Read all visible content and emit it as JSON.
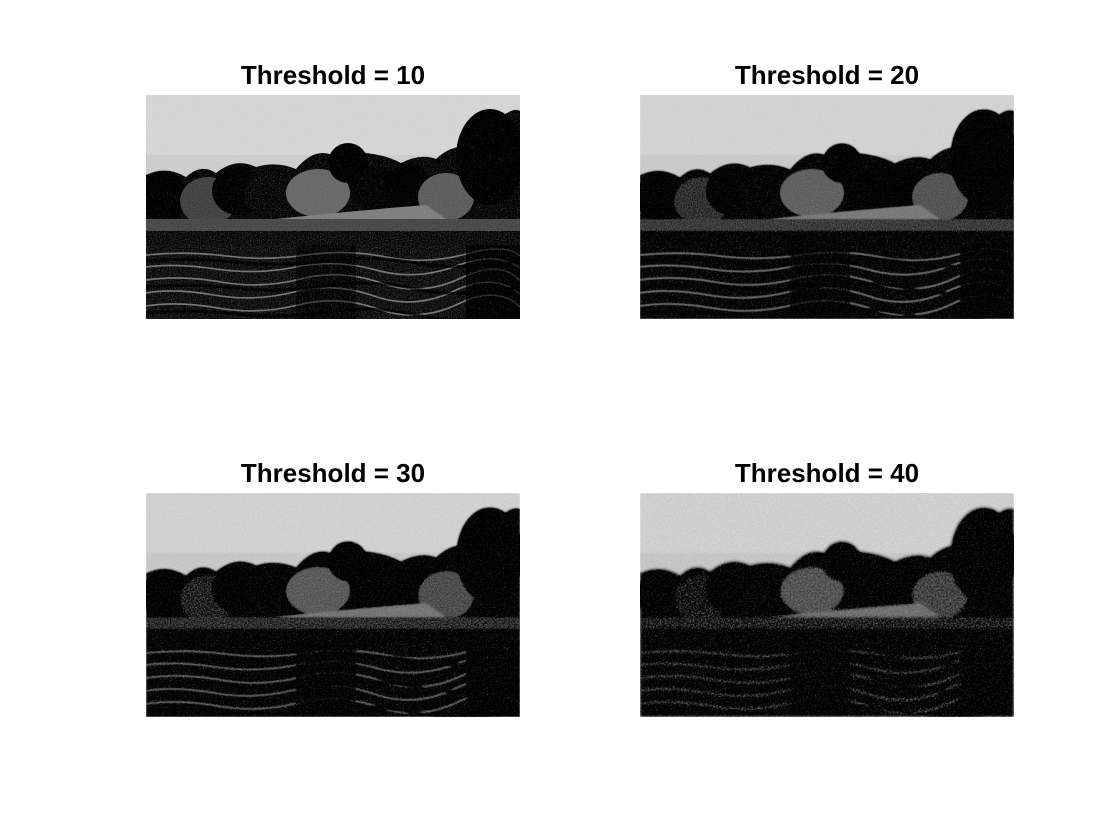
{
  "panels": [
    {
      "title": "Threshold = 10",
      "blur": 0.0,
      "noise": 0.18
    },
    {
      "title": "Threshold = 20",
      "blur": 0.5,
      "noise": 0.28
    },
    {
      "title": "Threshold = 30",
      "blur": 0.9,
      "noise": 0.34
    },
    {
      "title": "Threshold = 40",
      "blur": 1.3,
      "noise": 0.4
    }
  ],
  "colors": {
    "background": "#ffffff",
    "title": "#000000"
  }
}
